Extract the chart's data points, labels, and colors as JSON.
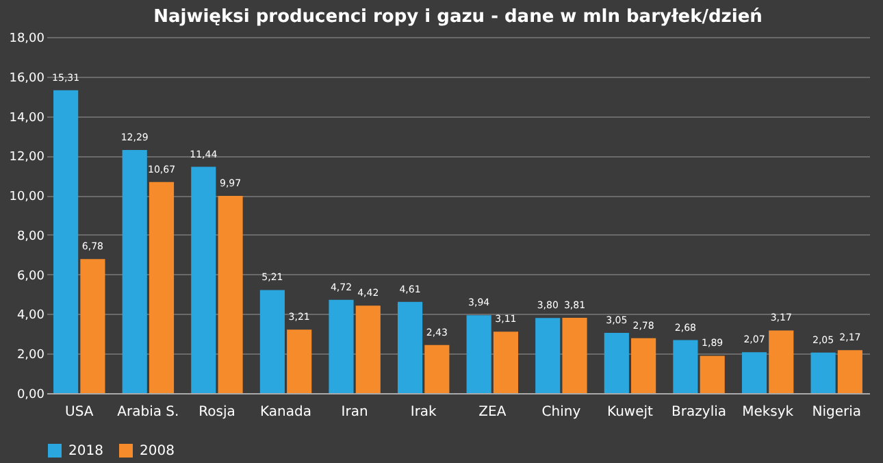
{
  "chart_data": {
    "type": "bar",
    "title": "Najwięksi producenci ropy i gazu - dane w mln baryłek/dzień",
    "categories": [
      "USA",
      "Arabia S.",
      "Rosja",
      "Kanada",
      "Iran",
      "Irak",
      "ZEA",
      "Chiny",
      "Kuwejt",
      "Brazylia",
      "Meksyk",
      "Nigeria"
    ],
    "series": [
      {
        "name": "2018",
        "color": "#2aa7df",
        "values": [
          15.31,
          12.29,
          11.44,
          5.21,
          4.72,
          4.61,
          3.94,
          3.8,
          3.05,
          2.68,
          2.07,
          2.05
        ],
        "value_labels": [
          "15,31",
          "12,29",
          "11,44",
          "5,21",
          "4,72",
          "4,61",
          "3,94",
          "3,80",
          "3,05",
          "2,68",
          "2,07",
          "2,05"
        ]
      },
      {
        "name": "2008",
        "color": "#f68b2c",
        "values": [
          6.78,
          10.67,
          9.97,
          3.21,
          4.42,
          2.43,
          3.11,
          3.81,
          2.78,
          1.89,
          3.17,
          2.17
        ],
        "value_labels": [
          "6,78",
          "10,67",
          "9,97",
          "3,21",
          "4,42",
          "2,43",
          "3,11",
          "3,81",
          "2,78",
          "1,89",
          "3,17",
          "2,17"
        ]
      }
    ],
    "ylim": [
      0,
      18
    ],
    "yticks": [
      {
        "value": 0,
        "label": "0,00"
      },
      {
        "value": 2,
        "label": "2,00"
      },
      {
        "value": 4,
        "label": "4,00"
      },
      {
        "value": 6,
        "label": "6,00"
      },
      {
        "value": 8,
        "label": "8,00"
      },
      {
        "value": 10,
        "label": "10,00"
      },
      {
        "value": 12,
        "label": "12,00"
      },
      {
        "value": 14,
        "label": "14,00"
      },
      {
        "value": 16,
        "label": "16,00"
      },
      {
        "value": 18,
        "label": "18,00"
      }
    ],
    "grid": "y",
    "legend": "bottom"
  }
}
